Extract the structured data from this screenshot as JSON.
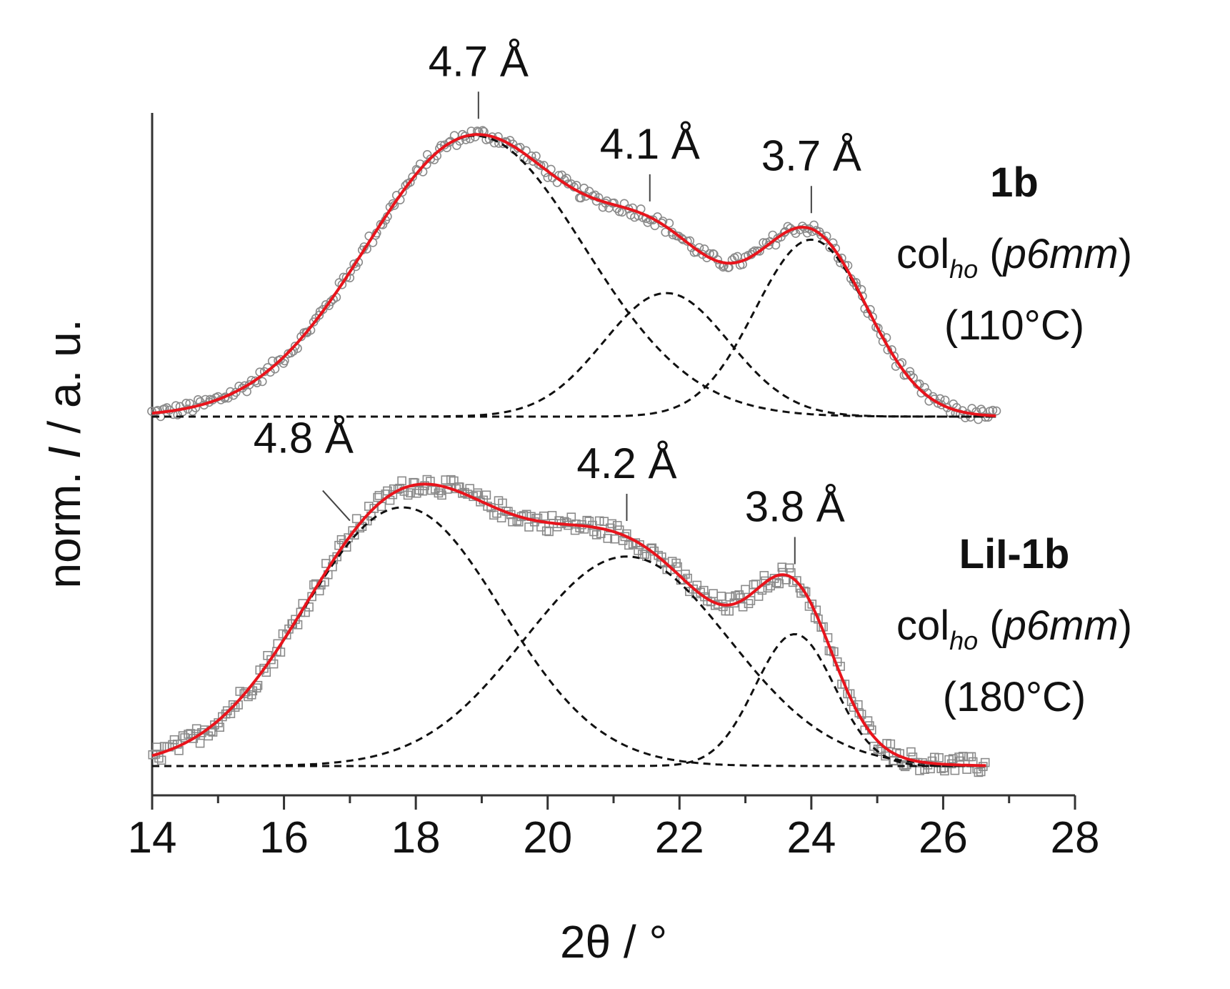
{
  "chart_data": {
    "type": "scatter",
    "xlabel": "2θ / °",
    "ylabel_parts": [
      "norm. ",
      "I",
      " / a. u."
    ],
    "xlim": [
      14,
      28
    ],
    "x_ticks": [
      "14",
      "16",
      "18",
      "20",
      "22",
      "24",
      "26",
      "28"
    ],
    "x_tick_values": [
      14,
      16,
      18,
      20,
      22,
      24,
      26,
      28
    ],
    "panels": [
      {
        "id": "1b",
        "sample": "1b",
        "phase_prefix": "col",
        "phase_sub": "ho",
        "phase_paren_open": " (",
        "phase_group": "p6mm",
        "phase_paren_close": ")",
        "temperature": "(110°C)",
        "marker": "circle",
        "baseline": 0,
        "x_range": [
          14,
          26.8
        ],
        "components": [
          {
            "center": 18.9,
            "amplitude": 1.0,
            "sigma": 1.65
          },
          {
            "center": 21.8,
            "amplitude": 0.44,
            "sigma": 0.95
          },
          {
            "center": 24.0,
            "amplitude": 0.63,
            "sigma": 0.85
          }
        ],
        "peaks": [
          {
            "label": "4.7 Å",
            "x": 18.95
          },
          {
            "label": "4.1 Å",
            "x": 21.55
          },
          {
            "label": "3.7 Å",
            "x": 24.0
          }
        ]
      },
      {
        "id": "LiI-1b",
        "sample": "LiI-1b",
        "phase_prefix": "col",
        "phase_sub": "ho",
        "phase_paren_open": " (",
        "phase_group": "p6mm",
        "phase_paren_close": ")",
        "temperature": "(180°C)",
        "marker": "square",
        "baseline": 0,
        "x_range": [
          14,
          26.65
        ],
        "components": [
          {
            "center": 17.8,
            "amplitude": 1.0,
            "sigma": 1.5
          },
          {
            "center": 21.2,
            "amplitude": 0.81,
            "sigma": 1.55
          },
          {
            "center": 23.75,
            "amplitude": 0.51,
            "sigma": 0.6
          }
        ],
        "peaks": [
          {
            "label": "4.8 Å",
            "x": 17.0
          },
          {
            "label": "4.2 Å",
            "x": 21.2
          },
          {
            "label": "3.8 Å",
            "x": 23.75
          }
        ]
      }
    ],
    "series_styles": {
      "data": {
        "marker_color": "#8a8a8a"
      },
      "fit_total": {
        "color": "#e8141c"
      },
      "fit_components": {
        "color": "#111111",
        "dash": "dashed"
      }
    }
  }
}
